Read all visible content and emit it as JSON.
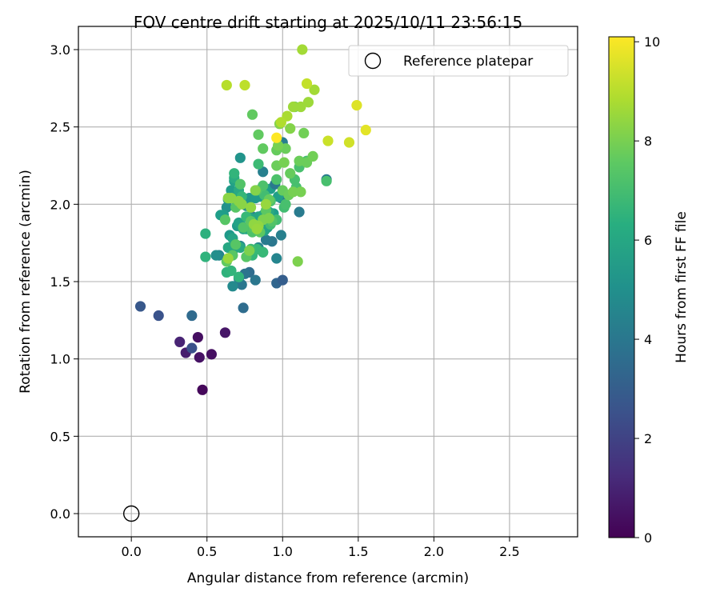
{
  "chart_data": {
    "type": "scatter",
    "title": "FOV centre drift starting at 2025/10/11 23:56:15",
    "xlabel": "Angular distance from reference (arcmin)",
    "ylabel": "Rotation from reference (arcmin)",
    "colorbar_label": "Hours from first FF file",
    "xlim": [
      -0.35,
      2.95
    ],
    "ylim": [
      -0.15,
      3.15
    ],
    "xticks": [
      0.0,
      0.5,
      1.0,
      1.5,
      2.0,
      2.5
    ],
    "yticks": [
      0.0,
      0.5,
      1.0,
      1.5,
      2.0,
      2.5,
      3.0
    ],
    "xtick_labels": [
      "0.0",
      "0.5",
      "1.0",
      "1.5",
      "2.0",
      "2.5"
    ],
    "ytick_labels": [
      "0.0",
      "0.5",
      "1.0",
      "1.5",
      "2.0",
      "2.5",
      "3.0"
    ],
    "colorbar_range": [
      0,
      10.1
    ],
    "colorbar_ticks": [
      0,
      2,
      4,
      6,
      8,
      10
    ],
    "colorbar_tick_labels": [
      "0",
      "2",
      "4",
      "6",
      "8",
      "10"
    ],
    "colormap": "viridis",
    "grid": true,
    "legend": {
      "position": "top-right",
      "entries": [
        "Reference platepar"
      ]
    },
    "reference_point": {
      "x": 0.0,
      "y": 0.0
    },
    "series": [
      {
        "marker": "filled-circle",
        "x": [
          0.47,
          0.53,
          0.36,
          0.45,
          0.32,
          0.4,
          0.44,
          0.62,
          0.4,
          0.06,
          0.18,
          0.74,
          0.96,
          1.0,
          0.73,
          0.71,
          0.67,
          0.78,
          0.82,
          0.58,
          0.75,
          0.87,
          0.93,
          0.96,
          0.99,
          1.11,
          1.29,
          1.0,
          0.99,
          0.87,
          0.8,
          0.89,
          0.84,
          0.72,
          0.85,
          0.61,
          0.56,
          0.63,
          0.64,
          0.65,
          0.67,
          0.7,
          0.72,
          0.76,
          0.78,
          0.82,
          0.85,
          0.88,
          0.9,
          0.94,
          0.97,
          0.68,
          0.66,
          0.61,
          0.59,
          0.73,
          0.71,
          0.7,
          0.74,
          0.68,
          0.79,
          0.84,
          0.88,
          0.92,
          0.95,
          0.67,
          0.72,
          0.76,
          0.87,
          0.91,
          0.64,
          0.71,
          0.68,
          0.49,
          0.49,
          0.63,
          0.66,
          0.71,
          0.68,
          0.73,
          0.8,
          0.83,
          0.87,
          0.76,
          0.79,
          0.84,
          0.88,
          0.92,
          0.96,
          1.01,
          1.09,
          1.29,
          1.16,
          1.11,
          1.08,
          1.02,
          0.96,
          0.87,
          0.83,
          0.8,
          0.92,
          0.79,
          0.74,
          0.72,
          0.83,
          0.93,
          0.81,
          0.69,
          0.62,
          0.67,
          0.69,
          0.76,
          0.79,
          0.85,
          0.89,
          0.63,
          0.8,
          0.84,
          0.87,
          0.91,
          0.96,
          1.0,
          1.05,
          1.11,
          1.16,
          1.04,
          0.96,
          1.02,
          1.08,
          1.14,
          1.2,
          1.07,
          1.12,
          1.01,
          0.97,
          0.91,
          0.78,
          0.87,
          1.1,
          1.05,
          0.98,
          0.82,
          0.66,
          0.64,
          0.71,
          0.73,
          0.79,
          0.81,
          0.84,
          0.89,
          0.83,
          0.64,
          1.12,
          1.17,
          1.21,
          1.07,
          1.13,
          1.03,
          0.99,
          0.63,
          0.75,
          1.16,
          1.3,
          1.44,
          1.49,
          1.55,
          0.96
        ],
        "y": [
          0.8,
          1.03,
          1.04,
          1.01,
          1.11,
          1.07,
          1.14,
          1.17,
          1.28,
          1.34,
          1.28,
          1.33,
          1.49,
          1.51,
          1.48,
          1.52,
          1.47,
          1.56,
          1.51,
          1.67,
          1.55,
          1.69,
          1.76,
          1.65,
          1.8,
          1.95,
          2.16,
          2.4,
          2.04,
          2.21,
          1.92,
          1.77,
          1.72,
          1.73,
          1.83,
          1.92,
          1.67,
          1.98,
          2.03,
          1.8,
          1.7,
          1.86,
          2.3,
          1.99,
          2.04,
          2.04,
          2.05,
          1.92,
          1.85,
          1.94,
          2.05,
          2.07,
          2.09,
          1.93,
          1.93,
          1.86,
          1.88,
          2.01,
          1.84,
          2.15,
          1.91,
          1.92,
          1.83,
          2.1,
          2.13,
          1.78,
          1.72,
          1.84,
          1.93,
          1.95,
          1.72,
          2.09,
          2.17,
          1.81,
          1.66,
          1.56,
          1.57,
          1.53,
          2.2,
          2.05,
          1.67,
          1.71,
          1.69,
          1.92,
          1.71,
          2.26,
          2.06,
          1.87,
          1.9,
          1.98,
          2.11,
          2.15,
          2.28,
          2.24,
          2.16,
          2.0,
          2.16,
          2.12,
          1.84,
          1.82,
          2.02,
          1.88,
          1.85,
          2.13,
          2.09,
          1.89,
          1.85,
          1.74,
          1.9,
          1.67,
          1.98,
          1.66,
          1.89,
          1.82,
          1.96,
          1.63,
          2.58,
          2.45,
          2.36,
          2.03,
          2.35,
          2.09,
          2.2,
          2.28,
          2.27,
          2.06,
          2.25,
          2.36,
          2.63,
          2.46,
          2.31,
          2.08,
          2.08,
          2.27,
          2.38,
          1.91,
          1.7,
          1.9,
          1.63,
          2.49,
          2.52,
          2.09,
          2.04,
          2.04,
          2.02,
          2.0,
          1.98,
          1.87,
          1.86,
          2.0,
          1.84,
          1.65,
          2.63,
          2.66,
          2.74,
          2.63,
          3.0,
          2.57,
          2.53,
          2.77,
          2.77,
          2.78,
          2.41,
          2.4,
          2.64,
          2.48,
          2.43
        ],
        "hours": [
          0.2,
          0.4,
          0.8,
          0.5,
          1.0,
          2.5,
          0.4,
          0.6,
          3.5,
          2.8,
          2.6,
          3.6,
          3.3,
          3.0,
          4.0,
          4.2,
          4.8,
          3.6,
          4.0,
          4.6,
          3.9,
          4.3,
          4.0,
          4.6,
          4.4,
          4.2,
          4.2,
          4.3,
          4.3,
          4.4,
          4.3,
          4.2,
          4.6,
          4.7,
          4.8,
          5.0,
          5.0,
          5.1,
          5.3,
          5.4,
          5.4,
          5.5,
          5.2,
          5.0,
          5.3,
          5.5,
          5.5,
          5.4,
          5.6,
          5.6,
          5.7,
          5.6,
          5.5,
          5.6,
          5.6,
          5.7,
          5.8,
          5.9,
          5.8,
          5.8,
          5.9,
          5.9,
          5.9,
          5.6,
          4.1,
          5.9,
          6.1,
          6.1,
          6.0,
          6.1,
          6.0,
          6.1,
          6.2,
          6.4,
          6.5,
          6.5,
          6.6,
          6.6,
          6.6,
          6.7,
          6.7,
          6.8,
          6.8,
          6.8,
          6.9,
          6.9,
          7.0,
          7.0,
          7.0,
          7.0,
          7.1,
          7.1,
          7.1,
          7.1,
          7.1,
          7.1,
          7.2,
          7.2,
          7.2,
          7.2,
          7.2,
          7.3,
          7.3,
          7.3,
          7.3,
          7.3,
          7.4,
          7.4,
          7.4,
          7.4,
          7.4,
          7.4,
          7.5,
          7.5,
          7.5,
          7.6,
          7.6,
          7.6,
          7.6,
          7.7,
          7.7,
          7.7,
          7.7,
          7.8,
          7.8,
          7.8,
          7.8,
          7.8,
          7.9,
          7.9,
          7.9,
          8.0,
          8.0,
          8.0,
          8.0,
          8.1,
          8.1,
          8.1,
          8.1,
          8.2,
          8.2,
          8.2,
          8.3,
          8.3,
          8.3,
          8.3,
          8.4,
          8.4,
          8.4,
          8.5,
          8.5,
          8.5,
          8.6,
          8.6,
          8.7,
          8.6,
          8.7,
          8.8,
          8.9,
          9.0,
          9.1,
          9.2,
          9.3,
          9.4,
          9.6,
          9.7,
          10.1
        ]
      }
    ]
  }
}
